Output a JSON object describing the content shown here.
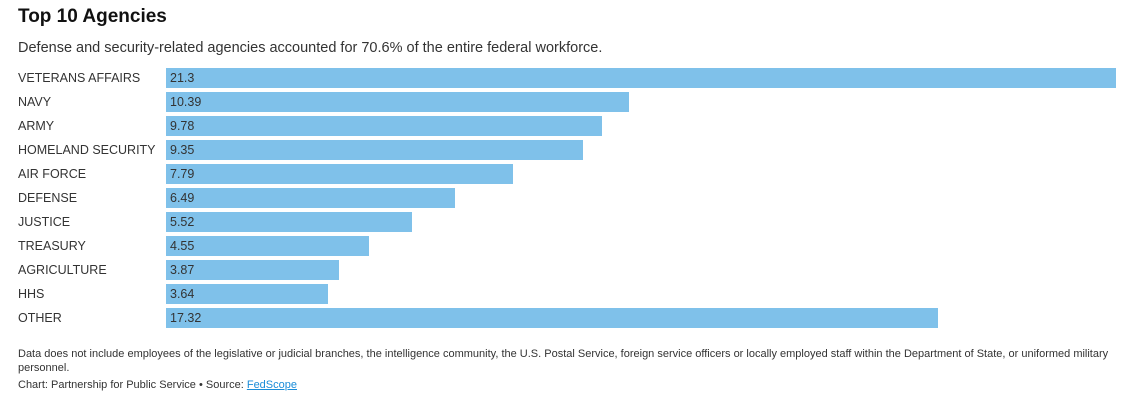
{
  "chart_data": {
    "type": "bar",
    "orientation": "horizontal",
    "title": "Top 10 Agencies",
    "subtitle": "Defense and security-related agencies accounted for 70.6% of the entire federal workforce.",
    "categories": [
      "VETERANS AFFAIRS",
      "NAVY",
      "ARMY",
      "HOMELAND SECURITY",
      "AIR FORCE",
      "DEFENSE",
      "JUSTICE",
      "TREASURY",
      "AGRICULTURE",
      "HHS",
      "OTHER"
    ],
    "values": [
      21.3,
      10.39,
      9.78,
      9.35,
      7.79,
      6.49,
      5.52,
      4.55,
      3.87,
      3.64,
      17.32
    ],
    "xlim": [
      0,
      21.3
    ],
    "grid": false,
    "bar_color": "#7fc1ea"
  },
  "footer": {
    "note": "Data does not include employees of the legislative or judicial branches, the intelligence community, the U.S. Postal Service, foreign service officers or locally employed staff within the Department of State, or uniformed military personnel.",
    "credit": "Chart: Partnership for Public Service • Source: ",
    "source_link": "FedScope"
  }
}
